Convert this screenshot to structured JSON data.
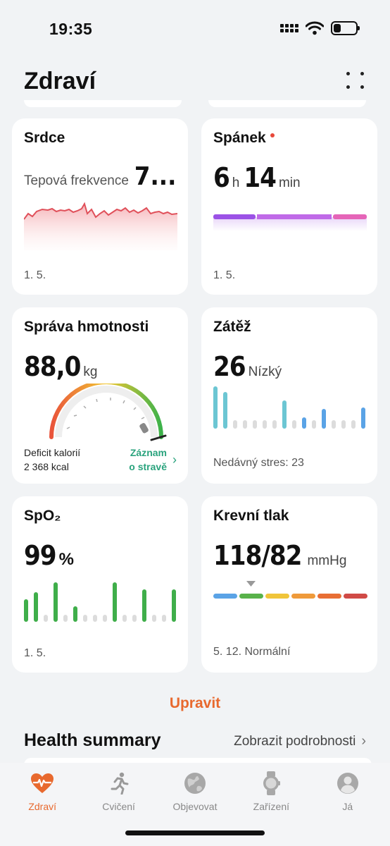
{
  "status_bar": {
    "time": "19:35"
  },
  "header": {
    "title": "Zdraví"
  },
  "cards": {
    "heart": {
      "title": "Srdce",
      "label": "Tepová frekvence",
      "value": "7...",
      "date": "1. 5.",
      "color": "#e8504f"
    },
    "sleep": {
      "title": "Spánek",
      "hours": "6",
      "hours_unit": "h",
      "minutes": "14",
      "minutes_unit": "min",
      "date": "1. 5."
    },
    "weight": {
      "title": "Správa hmotnosti",
      "value": "88,0",
      "unit": "kg",
      "deficit_label": "Deficit kalorií",
      "deficit_value": "2 368 kcal",
      "link_line1": "Záznam",
      "link_line2": "o stravě"
    },
    "stress": {
      "title": "Zátěž",
      "value": "26",
      "level": "Nízký",
      "footer": "Nedávný stres: 23"
    },
    "spo2": {
      "title": "SpO₂",
      "value": "99",
      "unit": "%",
      "date": "1. 5."
    },
    "bp": {
      "title": "Krevní tlak",
      "value": "118/82",
      "unit": "mmHg",
      "footer": "5. 12. Normální"
    }
  },
  "edit_label": "Upravit",
  "summary": {
    "title": "Health summary",
    "link": "Zobrazit podrobnosti"
  },
  "tabs": [
    {
      "label": "Zdraví",
      "icon": "heart-pulse-icon",
      "active": true
    },
    {
      "label": "Cvičení",
      "icon": "running-icon",
      "active": false
    },
    {
      "label": "Objevovat",
      "icon": "globe-icon",
      "active": false
    },
    {
      "label": "Zařízení",
      "icon": "watch-icon",
      "active": false
    },
    {
      "label": "Já",
      "icon": "profile-icon",
      "active": false
    }
  ],
  "colors": {
    "accent": "#e8692e",
    "link_green": "#2aa37d",
    "bar_green": "#3fae4a",
    "bar_blue": "#5aa3e6",
    "bar_teal": "#6cc6d3"
  }
}
